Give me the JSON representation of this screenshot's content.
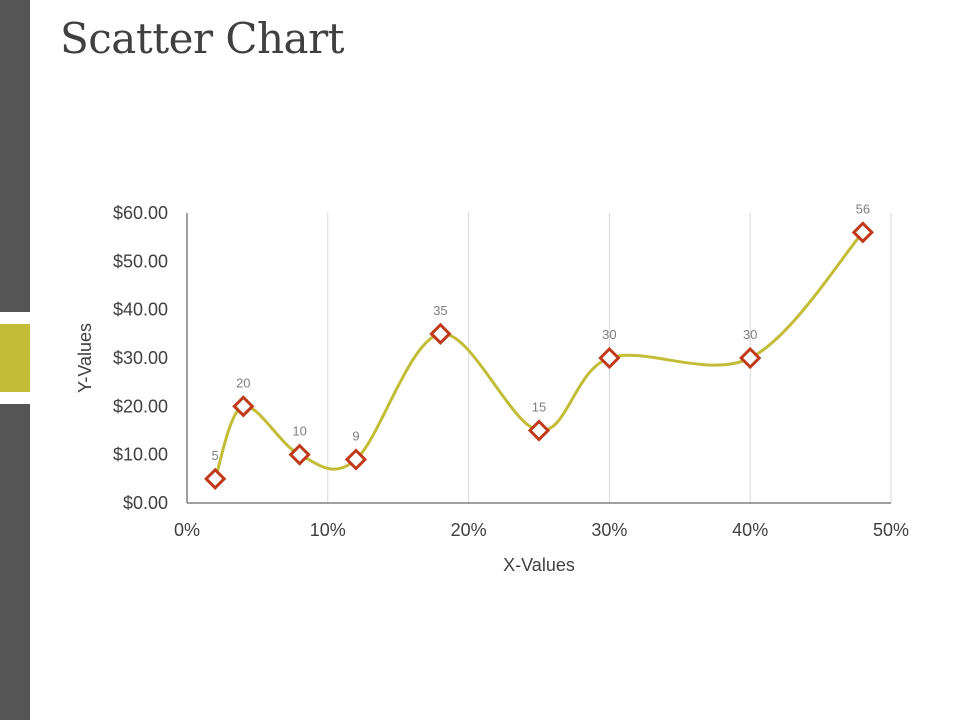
{
  "page": {
    "title": "Scatter Chart",
    "accent_color": "#c2bc36",
    "sidebar_color": "#555555"
  },
  "chart_data": {
    "type": "scatter",
    "title": "",
    "xlabel": "X-Values",
    "ylabel": "Y-Values",
    "xlim": [
      0,
      0.5
    ],
    "ylim": [
      0,
      60
    ],
    "x_ticks": [
      0,
      0.1,
      0.2,
      0.3,
      0.4,
      0.5
    ],
    "x_tick_labels": [
      "0%",
      "10%",
      "20%",
      "30%",
      "40%",
      "50%"
    ],
    "y_ticks": [
      0,
      10,
      20,
      30,
      40,
      50,
      60
    ],
    "y_tick_labels": [
      "$0.00",
      "$10.00",
      "$20.00",
      "$30.00",
      "$40.00",
      "$50.00",
      "$60.00"
    ],
    "grid": "vertical",
    "smooth_line": true,
    "line_color": "#c2bc36",
    "marker": "diamond",
    "marker_color": "#c0391b",
    "series": [
      {
        "points": [
          {
            "x": 0.02,
            "y": 5,
            "label": "5"
          },
          {
            "x": 0.04,
            "y": 20,
            "label": "20"
          },
          {
            "x": 0.08,
            "y": 10,
            "label": "10"
          },
          {
            "x": 0.12,
            "y": 9,
            "label": "9"
          },
          {
            "x": 0.18,
            "y": 35,
            "label": "35"
          },
          {
            "x": 0.25,
            "y": 15,
            "label": "15"
          },
          {
            "x": 0.3,
            "y": 30,
            "label": "30"
          },
          {
            "x": 0.4,
            "y": 30,
            "label": "30"
          },
          {
            "x": 0.48,
            "y": 56,
            "label": "56"
          }
        ]
      }
    ]
  }
}
